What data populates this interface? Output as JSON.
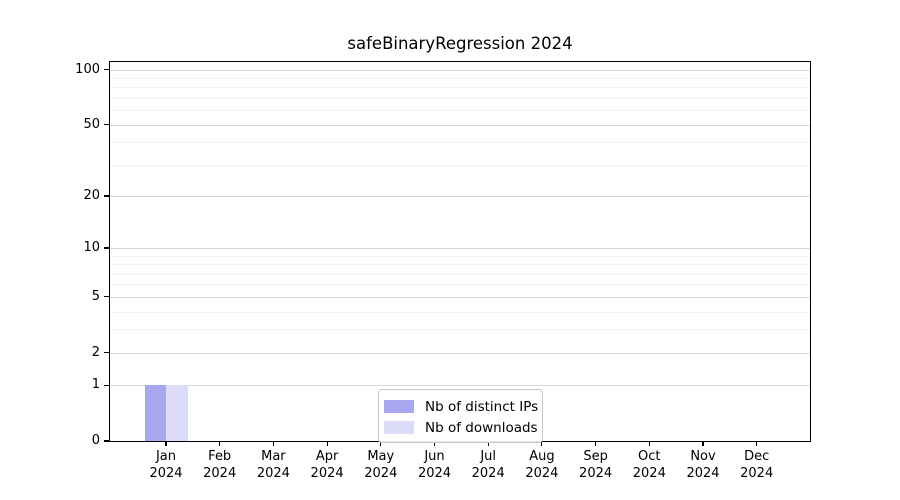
{
  "title": "safeBinaryRegression 2024",
  "chart_data": {
    "type": "bar",
    "title": "safeBinaryRegression 2024",
    "scale": "log1p",
    "categories": [
      "Jan",
      "Feb",
      "Mar",
      "Apr",
      "May",
      "Jun",
      "Jul",
      "Aug",
      "Sep",
      "Oct",
      "Nov",
      "Dec"
    ],
    "year": "2024",
    "series": [
      {
        "name": "Nb of distinct IPs",
        "color": "#a8a8f0",
        "values": [
          1,
          0,
          0,
          0,
          0,
          0,
          0,
          0,
          0,
          0,
          0,
          0
        ]
      },
      {
        "name": "Nb of downloads",
        "color": "#dcdcf8",
        "values": [
          1,
          0,
          0,
          0,
          0,
          0,
          0,
          0,
          0,
          0,
          0,
          0
        ]
      }
    ],
    "y_ticks": [
      0,
      1,
      2,
      5,
      10,
      20,
      50,
      100
    ],
    "y_minor_gridlines": [
      3,
      4,
      6,
      7,
      8,
      9,
      30,
      40,
      60,
      70,
      80,
      90
    ],
    "ylim": [
      0,
      110
    ],
    "xlabel": "",
    "ylabel": "",
    "grid": true,
    "legend_position": "bottom-center",
    "colors": {
      "major_grid": "#d6d6d6",
      "minor_grid": "#f1f1f1",
      "spine": "#000000",
      "background": "#ffffff"
    }
  }
}
